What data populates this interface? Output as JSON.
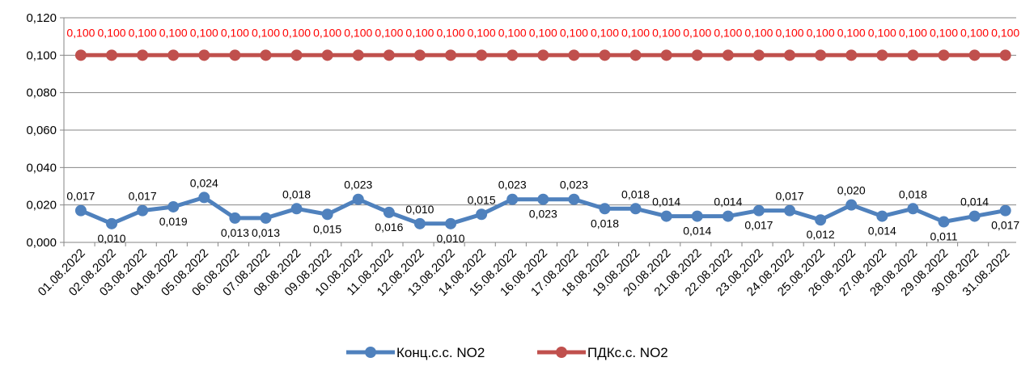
{
  "chart_data": {
    "type": "line",
    "title": "",
    "xlabel": "",
    "ylabel": "",
    "ylim": [
      0,
      0.12
    ],
    "yticks": [
      "0,000",
      "0,020",
      "0,040",
      "0,060",
      "0,080",
      "0,100",
      "0,120"
    ],
    "categories": [
      "01.08.2022",
      "02.08.2022",
      "03.08.2022",
      "04.08.2022",
      "05.08.2022",
      "06.08.2022",
      "07.08.2022",
      "08.08.2022",
      "09.08.2022",
      "10.08.2022",
      "11.08.2022",
      "12.08.2022",
      "13.08.2022",
      "14.08.2022",
      "15.08.2022",
      "16.08.2022",
      "17.08.2022",
      "18.08.2022",
      "19.08.2022",
      "20.08.2022",
      "21.08.2022",
      "22.08.2022",
      "23.08.2022",
      "24.08.2022",
      "25.08.2022",
      "26.08.2022",
      "27.08.2022",
      "28.08.2022",
      "29.08.2022",
      "30.08.2022",
      "31.08.2022"
    ],
    "grid": true,
    "legend_position": "bottom",
    "series": [
      {
        "name": "Конц.с.с. NO2",
        "color": "#4F81BD",
        "label_color": "#000000",
        "values": [
          0.017,
          0.01,
          0.017,
          0.019,
          0.024,
          0.013,
          0.013,
          0.018,
          0.015,
          0.023,
          0.016,
          0.01,
          0.01,
          0.015,
          0.023,
          0.023,
          0.023,
          0.018,
          0.018,
          0.014,
          0.014,
          0.014,
          0.017,
          0.017,
          0.012,
          0.02,
          0.014,
          0.018,
          0.011,
          0.014,
          0.017
        ],
        "labels": [
          "0,017",
          "0,010",
          "0,017",
          "0,019",
          "0,024",
          "0,013",
          "0,013",
          "0,018",
          "0,015",
          "0,023",
          "0,016",
          "0,010",
          "0,010",
          "0,015",
          "0,023",
          "0,023",
          "0,023",
          "0,018",
          "0,018",
          "0,014",
          "0,014",
          "0,014",
          "0,017",
          "0,017",
          "0,012",
          "0,020",
          "0,014",
          "0,018",
          "0,011",
          "0,014",
          "0,017"
        ],
        "label_side": [
          "above",
          "below",
          "above",
          "below",
          "above",
          "below",
          "below",
          "above",
          "below",
          "above",
          "below",
          "above",
          "below",
          "above",
          "above",
          "below",
          "above",
          "below",
          "above",
          "above",
          "below",
          "above",
          "below",
          "above",
          "below",
          "above",
          "below",
          "above",
          "below",
          "above",
          "below"
        ]
      },
      {
        "name": "ПДКс.с. NO2",
        "color": "#C0504D",
        "label_color": "#FF0000",
        "values": [
          0.1,
          0.1,
          0.1,
          0.1,
          0.1,
          0.1,
          0.1,
          0.1,
          0.1,
          0.1,
          0.1,
          0.1,
          0.1,
          0.1,
          0.1,
          0.1,
          0.1,
          0.1,
          0.1,
          0.1,
          0.1,
          0.1,
          0.1,
          0.1,
          0.1,
          0.1,
          0.1,
          0.1,
          0.1,
          0.1,
          0.1
        ],
        "labels": [
          "0,100",
          "0,100",
          "0,100",
          "0,100",
          "0,100",
          "0,100",
          "0,100",
          "0,100",
          "0,100",
          "0,100",
          "0,100",
          "0,100",
          "0,100",
          "0,100",
          "0,100",
          "0,100",
          "0,100",
          "0,100",
          "0,100",
          "0,100",
          "0,100",
          "0,100",
          "0,100",
          "0,100",
          "0,100",
          "0,100",
          "0,100",
          "0,100",
          "0,100",
          "0,100",
          "0,100"
        ],
        "label_side": [
          "above",
          "above",
          "above",
          "above",
          "above",
          "above",
          "above",
          "above",
          "above",
          "above",
          "above",
          "above",
          "above",
          "above",
          "above",
          "above",
          "above",
          "above",
          "above",
          "above",
          "above",
          "above",
          "above",
          "above",
          "above",
          "above",
          "above",
          "above",
          "above",
          "above",
          "above"
        ]
      }
    ]
  }
}
